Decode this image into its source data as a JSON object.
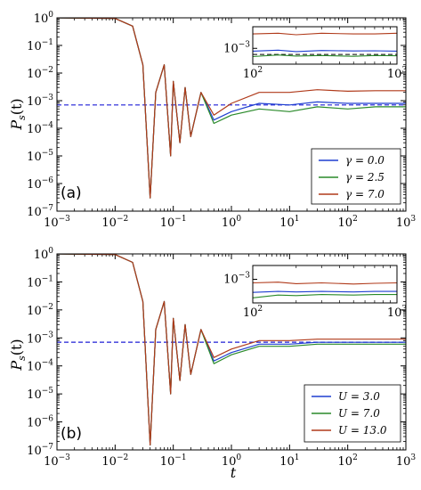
{
  "figure": {
    "x_label_base": "t",
    "y_label_base": "P",
    "y_label_sub": "s",
    "y_label_arg": "(t)"
  },
  "chart_data": [
    {
      "type": "line",
      "panel_label": "(a)",
      "xscale": "log",
      "yscale": "log",
      "xlim": [
        0.001,
        1000
      ],
      "ylim": [
        1e-07,
        1
      ],
      "xticks": [
        {
          "base": "10",
          "exp": "−3"
        },
        {
          "base": "10",
          "exp": "−2"
        },
        {
          "base": "10",
          "exp": "−1"
        },
        {
          "base": "10",
          "exp": "0"
        },
        {
          "base": "10",
          "exp": "1"
        },
        {
          "base": "10",
          "exp": "2"
        },
        {
          "base": "10",
          "exp": "3"
        }
      ],
      "yticks": [
        {
          "base": "10",
          "exp": "−7"
        },
        {
          "base": "10",
          "exp": "−6"
        },
        {
          "base": "10",
          "exp": "−5"
        },
        {
          "base": "10",
          "exp": "−4"
        },
        {
          "base": "10",
          "exp": "−3"
        },
        {
          "base": "10",
          "exp": "−2"
        },
        {
          "base": "10",
          "exp": "−1"
        },
        {
          "base": "10",
          "exp": "0"
        }
      ],
      "reference_line": {
        "y": 0.0007,
        "color": "#1f1fd6",
        "style": "dashed"
      },
      "legend_position": "lower-right",
      "series": [
        {
          "name": "γ = 0.0",
          "color": "#1f3fd0",
          "t": [
            0.001,
            0.01,
            0.02,
            0.03,
            0.04,
            0.05,
            0.07,
            0.09,
            0.1,
            0.13,
            0.16,
            0.2,
            0.3,
            0.5,
            1,
            3,
            10,
            30,
            100,
            300,
            1000
          ],
          "p": [
            1,
            0.95,
            0.5,
            0.02,
            3e-07,
            0.002,
            0.02,
            1e-05,
            0.005,
            3e-05,
            0.003,
            5e-05,
            0.002,
            0.0002,
            0.0004,
            0.0008,
            0.0007,
            0.0009,
            0.0008,
            0.0008,
            0.0008
          ]
        },
        {
          "name": "γ = 2.5",
          "color": "#2a8a2a",
          "t": [
            0.001,
            0.01,
            0.02,
            0.03,
            0.04,
            0.05,
            0.07,
            0.09,
            0.1,
            0.13,
            0.16,
            0.2,
            0.3,
            0.5,
            1,
            3,
            10,
            30,
            100,
            300,
            1000
          ],
          "p": [
            1,
            0.95,
            0.5,
            0.02,
            3e-07,
            0.002,
            0.02,
            1e-05,
            0.005,
            3e-05,
            0.003,
            5e-05,
            0.002,
            0.00015,
            0.0003,
            0.0005,
            0.0004,
            0.0006,
            0.0005,
            0.0006,
            0.0006
          ]
        },
        {
          "name": "γ = 7.0",
          "color": "#b03a1a",
          "t": [
            0.001,
            0.01,
            0.02,
            0.03,
            0.04,
            0.05,
            0.07,
            0.09,
            0.1,
            0.13,
            0.16,
            0.2,
            0.3,
            0.5,
            1,
            3,
            10,
            30,
            100,
            300,
            1000
          ],
          "p": [
            1,
            0.95,
            0.5,
            0.02,
            3e-07,
            0.002,
            0.02,
            1e-05,
            0.005,
            3e-05,
            0.003,
            5e-05,
            0.002,
            0.0003,
            0.0008,
            0.002,
            0.002,
            0.0025,
            0.0022,
            0.0023,
            0.0023
          ]
        }
      ],
      "inset": {
        "xscale": "log",
        "yscale": "log",
        "xlim": [
          100,
          1000
        ],
        "ylim": [
          0.0004,
          0.0035
        ],
        "xticks": [
          {
            "base": "10",
            "exp": "2"
          },
          {
            "base": "10",
            "exp": "3"
          }
        ],
        "yticks": [
          {
            "base": "10",
            "exp": "−3",
            "value": 0.001
          }
        ],
        "reference_line": {
          "y": 0.0007
        },
        "series": [
          {
            "t": [
              100,
              150,
              200,
              300,
              500,
              700,
              1000
            ],
            "p": [
              0.00085,
              0.0009,
              0.00083,
              0.00088,
              0.00086,
              0.00087,
              0.00085
            ]
          },
          {
            "t": [
              100,
              150,
              200,
              300,
              500,
              700,
              1000
            ],
            "p": [
              0.00062,
              0.00068,
              0.00064,
              0.00066,
              0.00063,
              0.00066,
              0.00065
            ]
          },
          {
            "t": [
              100,
              150,
              200,
              300,
              500,
              700,
              1000
            ],
            "p": [
              0.0023,
              0.0024,
              0.0022,
              0.0024,
              0.0023,
              0.0023,
              0.0024
            ]
          }
        ]
      }
    },
    {
      "type": "line",
      "panel_label": "(b)",
      "xscale": "log",
      "yscale": "log",
      "xlim": [
        0.001,
        1000
      ],
      "ylim": [
        1e-07,
        1
      ],
      "xticks": [
        {
          "base": "10",
          "exp": "−3"
        },
        {
          "base": "10",
          "exp": "−2"
        },
        {
          "base": "10",
          "exp": "−1"
        },
        {
          "base": "10",
          "exp": "0"
        },
        {
          "base": "10",
          "exp": "1"
        },
        {
          "base": "10",
          "exp": "2"
        },
        {
          "base": "10",
          "exp": "3"
        }
      ],
      "yticks": [
        {
          "base": "10",
          "exp": "−7"
        },
        {
          "base": "10",
          "exp": "−6"
        },
        {
          "base": "10",
          "exp": "−5"
        },
        {
          "base": "10",
          "exp": "−4"
        },
        {
          "base": "10",
          "exp": "−3"
        },
        {
          "base": "10",
          "exp": "−2"
        },
        {
          "base": "10",
          "exp": "−1"
        },
        {
          "base": "10",
          "exp": "0"
        }
      ],
      "reference_line": {
        "y": 0.0007,
        "color": "#1f1fd6",
        "style": "dashed"
      },
      "legend_position": "lower-right",
      "series": [
        {
          "name": "U = 3.0",
          "color": "#1f3fd0",
          "t": [
            0.001,
            0.01,
            0.02,
            0.03,
            0.04,
            0.05,
            0.07,
            0.09,
            0.1,
            0.13,
            0.16,
            0.2,
            0.3,
            0.5,
            1,
            3,
            10,
            30,
            100,
            300,
            1000
          ],
          "p": [
            1,
            0.95,
            0.5,
            0.02,
            1.5e-07,
            0.002,
            0.02,
            1e-05,
            0.005,
            3e-05,
            0.003,
            5e-05,
            0.002,
            0.00015,
            0.0003,
            0.0006,
            0.0006,
            0.0007,
            0.0007,
            0.0007,
            0.0007
          ]
        },
        {
          "name": "U = 7.0",
          "color": "#2a8a2a",
          "t": [
            0.001,
            0.01,
            0.02,
            0.03,
            0.04,
            0.05,
            0.07,
            0.09,
            0.1,
            0.13,
            0.16,
            0.2,
            0.3,
            0.5,
            1,
            3,
            10,
            30,
            100,
            300,
            1000
          ],
          "p": [
            1,
            0.95,
            0.5,
            0.02,
            1.5e-07,
            0.002,
            0.02,
            1e-05,
            0.005,
            3e-05,
            0.003,
            5e-05,
            0.002,
            0.00012,
            0.00025,
            0.0005,
            0.0005,
            0.0006,
            0.0006,
            0.0006,
            0.0006
          ]
        },
        {
          "name": "U = 13.0",
          "color": "#b03a1a",
          "t": [
            0.001,
            0.01,
            0.02,
            0.03,
            0.04,
            0.05,
            0.07,
            0.09,
            0.1,
            0.13,
            0.16,
            0.2,
            0.3,
            0.5,
            1,
            3,
            10,
            30,
            100,
            300,
            1000
          ],
          "p": [
            1,
            0.95,
            0.5,
            0.02,
            1.5e-07,
            0.002,
            0.02,
            1e-05,
            0.005,
            3e-05,
            0.003,
            5e-05,
            0.002,
            0.0002,
            0.0004,
            0.0008,
            0.0008,
            0.0009,
            0.0009,
            0.0009,
            0.0009
          ]
        }
      ],
      "inset": {
        "xscale": "log",
        "yscale": "log",
        "xlim": [
          100,
          1000
        ],
        "ylim": [
          0.0005,
          0.0015
        ],
        "xticks": [
          {
            "base": "10",
            "exp": "2"
          },
          {
            "base": "10",
            "exp": "3"
          }
        ],
        "yticks": [
          {
            "base": "10",
            "exp": "−3",
            "value": 0.001
          }
        ],
        "reference_line": null,
        "series": [
          {
            "t": [
              100,
              150,
              200,
              300,
              500,
              700,
              1000
            ],
            "p": [
              0.00068,
              0.0007,
              0.00069,
              0.0007,
              0.00069,
              0.0007,
              0.0007
            ]
          },
          {
            "t": [
              100,
              150,
              200,
              300,
              500,
              700,
              1000
            ],
            "p": [
              0.00058,
              0.00063,
              0.00062,
              0.00064,
              0.00063,
              0.00064,
              0.00064
            ]
          },
          {
            "t": [
              100,
              150,
              200,
              300,
              500,
              700,
              1000
            ],
            "p": [
              0.0009,
              0.00092,
              0.00088,
              0.0009,
              0.00087,
              0.00089,
              0.0009
            ]
          }
        ]
      }
    }
  ]
}
